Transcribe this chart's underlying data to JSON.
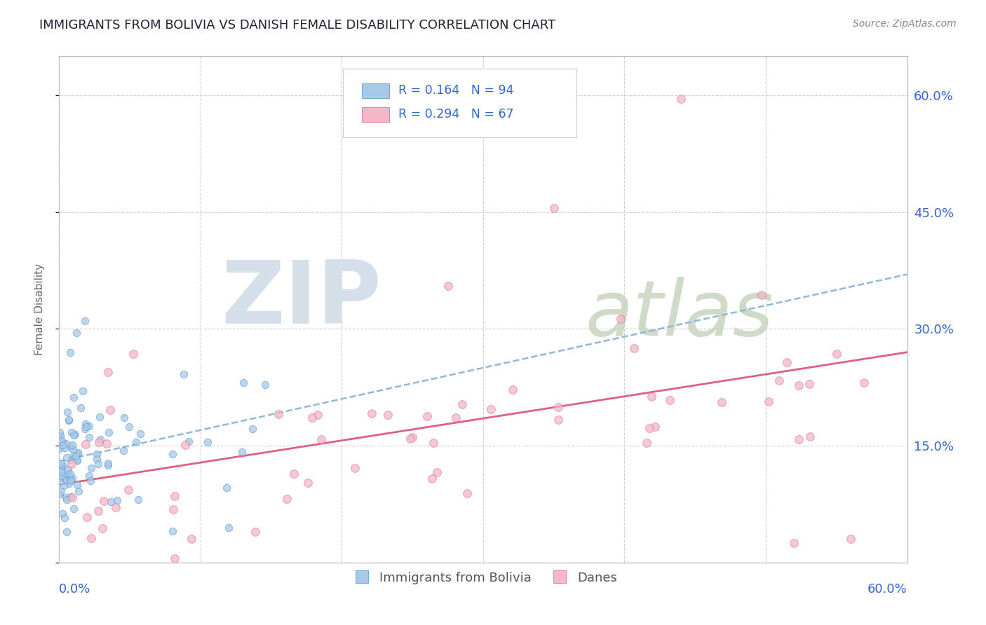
{
  "title": "IMMIGRANTS FROM BOLIVIA VS DANISH FEMALE DISABILITY CORRELATION CHART",
  "source": "Source: ZipAtlas.com",
  "ylabel": "Female Disability",
  "xlim": [
    0.0,
    0.6
  ],
  "ylim": [
    0.0,
    0.65
  ],
  "legend_r1": "R = 0.164",
  "legend_n1": "N = 94",
  "legend_r2": "R = 0.294",
  "legend_n2": "N = 67",
  "blue_color": "#a8c8e8",
  "blue_edge_color": "#5a9fd4",
  "pink_color": "#f4b8c8",
  "pink_edge_color": "#e07090",
  "blue_trend_color": "#90b8d8",
  "pink_trend_color": "#e06080",
  "watermark_zip_color": "#d0dce8",
  "watermark_atlas_color": "#c8d4c0",
  "background_color": "#ffffff",
  "grid_color": "#d0d0d0",
  "title_color": "#222233",
  "axis_label_color": "#3366cc",
  "seed": 12345
}
